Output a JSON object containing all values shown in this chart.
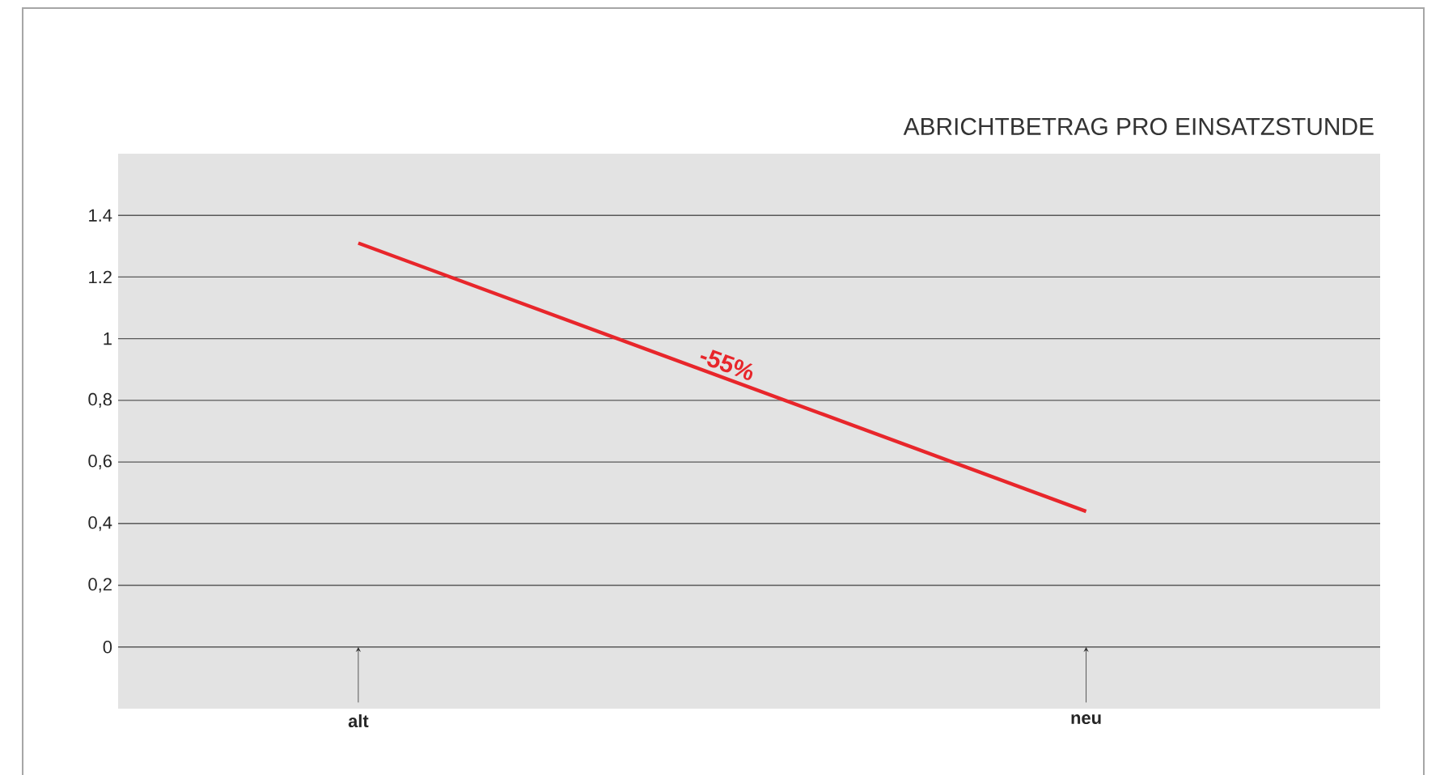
{
  "chart_data": {
    "type": "line",
    "title": "ABRICHTBETRAG PRO EINSATZSTUNDE",
    "categories": [
      "alt",
      "neu"
    ],
    "series": [
      {
        "color": "#e8262b",
        "values": [
          1.31,
          0.44
        ]
      }
    ],
    "ylim": [
      -0.2,
      1.6
    ],
    "yticks": [
      0,
      {
        "value": 0.2,
        "label": "0,2"
      },
      {
        "value": 0.4,
        "label": "0,4"
      },
      {
        "value": 0.6,
        "label": "0,6"
      },
      {
        "value": 0.8,
        "label": "0,8"
      },
      1,
      1.2,
      1.4
    ],
    "annotations": [
      "-55%"
    ],
    "grid": "y",
    "marker": "none",
    "line_style": "solid"
  }
}
